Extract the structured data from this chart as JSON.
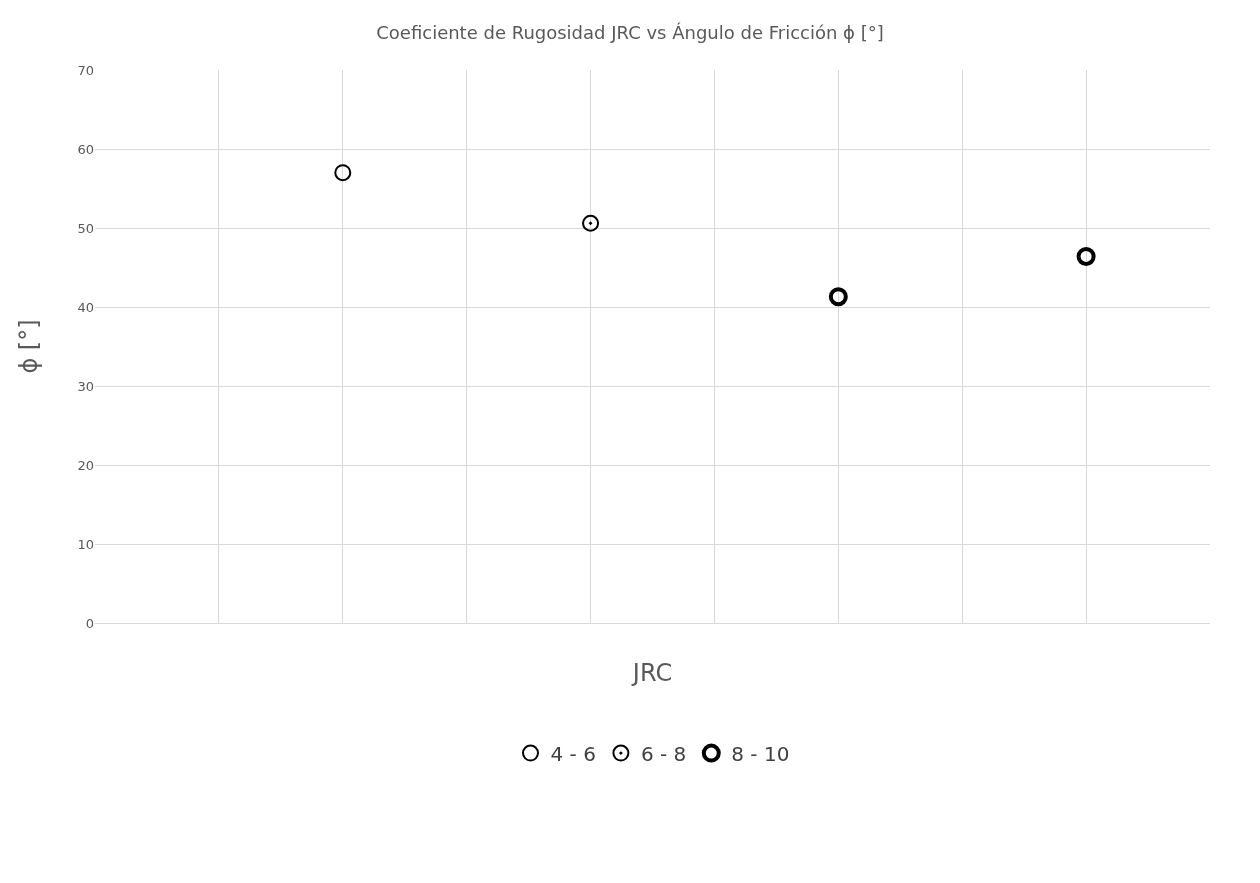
{
  "chart_data": {
    "type": "scatter",
    "title": "Coeficiente de Rugosidad JRC vs Ángulo de Fricción ϕ [°]",
    "xlabel": "JRC",
    "ylabel": "ϕ [°]",
    "categories": [
      null,
      null,
      null,
      null,
      null,
      null,
      null,
      null
    ],
    "series": [
      {
        "name": "4 - 6",
        "color": "#000000",
        "values": [
          null,
          57,
          null,
          null,
          null,
          null,
          null,
          null
        ]
      },
      {
        "name": "6 - 8",
        "color": "#000000",
        "values": [
          null,
          null,
          null,
          50.6,
          null,
          null,
          null,
          null
        ]
      },
      {
        "name": "8 - 10",
        "color": "#000000",
        "values": [
          null,
          null,
          null,
          null,
          null,
          41.3,
          null,
          46.4
        ]
      }
    ],
    "ylim": [
      0,
      70
    ],
    "yticks": [
      0,
      10,
      20,
      30,
      40,
      50,
      60,
      70
    ],
    "tick_labels": "y",
    "grid": true,
    "legend": "bottom",
    "marker": "circle"
  }
}
